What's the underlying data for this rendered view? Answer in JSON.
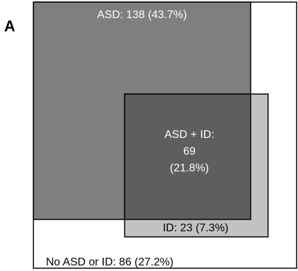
{
  "panel_label": "A",
  "chart_data": {
    "type": "venn",
    "title": "",
    "regions": {
      "asd_only": {
        "label": "ASD: 138 (43.7%)",
        "count": 138,
        "percent": 43.7
      },
      "overlap": {
        "lines": [
          "ASD + ID:",
          "69",
          "(21.8%)"
        ],
        "count": 69,
        "percent": 21.8
      },
      "id_only": {
        "label": "ID: 23 (7.3%)",
        "count": 23,
        "percent": 7.3
      },
      "neither": {
        "label": "No ASD or ID: 86 (27.2%)",
        "count": 86,
        "percent": 27.2
      }
    }
  },
  "colors": {
    "outer": "#ffffff",
    "asd": "#7f7f7f",
    "id": "#c2c2c2",
    "overlap": "#5e5e5e",
    "border": "#000000",
    "label_light": "#ffffff",
    "label_dark": "#000000"
  }
}
